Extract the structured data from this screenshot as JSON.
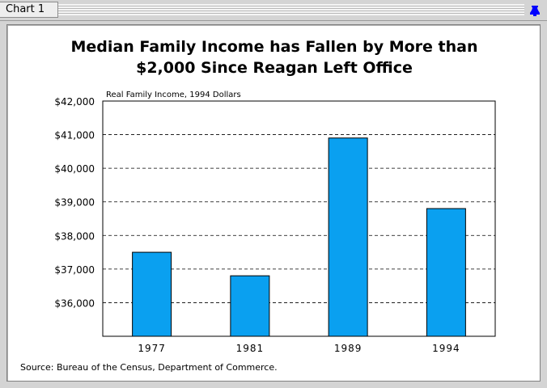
{
  "window": {
    "title": "Chart 1",
    "pin_icon": "bell-pin-icon",
    "accent": "#0000ff"
  },
  "chart_data": {
    "type": "bar",
    "title_lines": [
      "Median Family Income has Fallen by More than",
      "$2,000 Since Reagan Left Office"
    ],
    "ylabel": "Real Family Income, 1994 Dollars",
    "categories": [
      "1977",
      "1981",
      "1989",
      "1994"
    ],
    "values": [
      37500,
      36800,
      40900,
      38800
    ],
    "ylim": [
      35000,
      42000
    ],
    "yticks": [
      {
        "value": 36000,
        "label": "$36,000"
      },
      {
        "value": 37000,
        "label": "$37,000"
      },
      {
        "value": 38000,
        "label": "$38,000"
      },
      {
        "value": 39000,
        "label": "$39,000"
      },
      {
        "value": 40000,
        "label": "$40,000"
      },
      {
        "value": 41000,
        "label": "$41,000"
      },
      {
        "value": 42000,
        "label": "$42,000"
      }
    ],
    "grid": "dashed horizontal",
    "bar_color": "#0aa0f0",
    "source": "Source:  Bureau of the Census, Department of Commerce."
  }
}
